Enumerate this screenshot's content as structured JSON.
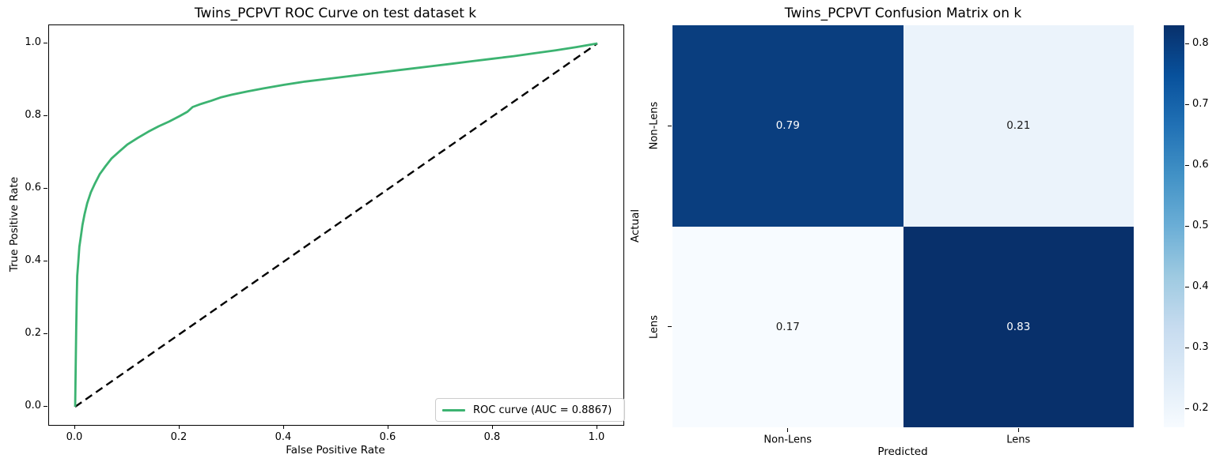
{
  "figure": {
    "background": "#ffffff"
  },
  "roc": {
    "title": "Twins_PCPVT ROC Curve on test dataset k",
    "xlabel": "False Positive Rate",
    "ylabel": "True Positive Rate",
    "legend_label": "ROC curve (AUC = 0.8867)",
    "auc": "0.8867",
    "line_color": "#3cb371",
    "diagonal_color": "#000000",
    "x_ticks": [
      0.0,
      0.2,
      0.4,
      0.6,
      0.8,
      1.0
    ],
    "y_ticks": [
      0.0,
      0.2,
      0.4,
      0.6,
      0.8,
      1.0
    ]
  },
  "cm": {
    "title": "Twins_PCPVT Confusion Matrix on k",
    "xlabel": "Predicted",
    "ylabel": "Actual",
    "row_labels": [
      "Non-Lens",
      "Lens"
    ],
    "col_labels": [
      "Non-Lens",
      "Lens"
    ],
    "cell_labels": [
      [
        "0.79",
        "0.21"
      ],
      [
        "0.17",
        "0.83"
      ]
    ],
    "cell_colors": [
      [
        "#0a3e7f",
        "#ebf3fb"
      ],
      [
        "#f7fbff",
        "#08306b"
      ]
    ],
    "cell_text_colors": [
      [
        "#ffffff",
        "#1a1a1a"
      ],
      [
        "#1a1a1a",
        "#ffffff"
      ]
    ],
    "colorbar": {
      "vmin": 0.17,
      "vmax": 0.83,
      "ticks": [
        0.2,
        0.3,
        0.4,
        0.5,
        0.6,
        0.7,
        0.8
      ],
      "gradient": [
        "#f7fbff",
        "#deebf7",
        "#c6dbef",
        "#9ecae1",
        "#6baed6",
        "#4292c6",
        "#2171b5",
        "#08519c",
        "#08306b"
      ]
    }
  },
  "chart_data": [
    {
      "type": "line",
      "title": "Twins_PCPVT ROC Curve on test dataset k",
      "xlabel": "False Positive Rate",
      "ylabel": "True Positive Rate",
      "xlim": [
        0.0,
        1.0
      ],
      "ylim": [
        0.0,
        1.0
      ],
      "grid": false,
      "legend_position": "lower right",
      "series": [
        {
          "name": "ROC curve (AUC = 0.8867)",
          "color": "#3cb371",
          "style": "solid",
          "points": [
            [
              0.0,
              0.0
            ],
            [
              0.002,
              0.21
            ],
            [
              0.003,
              0.3
            ],
            [
              0.004,
              0.36
            ],
            [
              0.006,
              0.4
            ],
            [
              0.008,
              0.44
            ],
            [
              0.011,
              0.47
            ],
            [
              0.014,
              0.5
            ],
            [
              0.018,
              0.53
            ],
            [
              0.023,
              0.56
            ],
            [
              0.03,
              0.59
            ],
            [
              0.038,
              0.615
            ],
            [
              0.047,
              0.64
            ],
            [
              0.058,
              0.662
            ],
            [
              0.07,
              0.684
            ],
            [
              0.085,
              0.703
            ],
            [
              0.1,
              0.722
            ],
            [
              0.12,
              0.74
            ],
            [
              0.14,
              0.757
            ],
            [
              0.16,
              0.772
            ],
            [
              0.18,
              0.785
            ],
            [
              0.2,
              0.8
            ],
            [
              0.215,
              0.812
            ],
            [
              0.225,
              0.825
            ],
            [
              0.24,
              0.833
            ],
            [
              0.26,
              0.842
            ],
            [
              0.28,
              0.852
            ],
            [
              0.3,
              0.859
            ],
            [
              0.33,
              0.868
            ],
            [
              0.36,
              0.876
            ],
            [
              0.4,
              0.886
            ],
            [
              0.44,
              0.895
            ],
            [
              0.48,
              0.902
            ],
            [
              0.52,
              0.909
            ],
            [
              0.56,
              0.916
            ],
            [
              0.6,
              0.923
            ],
            [
              0.64,
              0.93
            ],
            [
              0.68,
              0.937
            ],
            [
              0.72,
              0.944
            ],
            [
              0.76,
              0.951
            ],
            [
              0.8,
              0.958
            ],
            [
              0.84,
              0.965
            ],
            [
              0.88,
              0.973
            ],
            [
              0.92,
              0.981
            ],
            [
              0.96,
              0.99
            ],
            [
              1.0,
              1.0
            ]
          ]
        },
        {
          "name": "chance-diagonal",
          "color": "#000000",
          "style": "dashed",
          "points": [
            [
              0.0,
              0.0
            ],
            [
              1.0,
              1.0
            ]
          ]
        }
      ]
    },
    {
      "type": "heatmap",
      "title": "Twins_PCPVT Confusion Matrix on k",
      "xlabel": "Predicted",
      "ylabel": "Actual",
      "x_categories": [
        "Non-Lens",
        "Lens"
      ],
      "y_categories": [
        "Non-Lens",
        "Lens"
      ],
      "values": [
        [
          0.79,
          0.21
        ],
        [
          0.17,
          0.83
        ]
      ],
      "vmin": 0.17,
      "vmax": 0.83,
      "colormap": "Blues",
      "colorbar": true,
      "colorbar_ticks": [
        0.2,
        0.3,
        0.4,
        0.5,
        0.6,
        0.7,
        0.8
      ]
    }
  ]
}
